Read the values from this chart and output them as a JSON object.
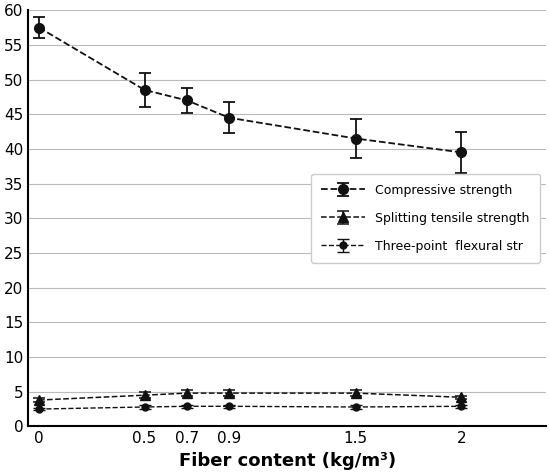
{
  "x": [
    0,
    0.5,
    0.7,
    0.9,
    1.5,
    2.0
  ],
  "compressive_y": [
    57.5,
    48.5,
    47.0,
    44.5,
    41.5,
    39.5
  ],
  "compressive_err": [
    1.5,
    2.5,
    1.8,
    2.2,
    2.8,
    3.0
  ],
  "splitting_y": [
    3.8,
    4.5,
    4.8,
    4.8,
    4.8,
    4.2
  ],
  "splitting_err": [
    0.25,
    0.4,
    0.45,
    0.4,
    0.4,
    0.25
  ],
  "flexural_y": [
    2.5,
    2.8,
    2.9,
    2.9,
    2.8,
    2.9
  ],
  "flexural_err": [
    0.2,
    0.25,
    0.25,
    0.25,
    0.25,
    0.2
  ],
  "xlabel": "Fiber content (kg/m³)",
  "legend_compressive": "Compressive strength",
  "legend_splitting": "Splitting tensile strength",
  "legend_flexural": "Three-point  flexural str",
  "ylim": [
    0,
    60
  ],
  "yticks": [
    0,
    5,
    10,
    15,
    20,
    25,
    30,
    35,
    40,
    45,
    50,
    55,
    60
  ],
  "xticks": [
    0,
    0.5,
    0.7,
    0.9,
    1.5,
    2.0
  ],
  "xticklabels": [
    "0",
    "0.5",
    "0.7",
    "0.9",
    "1.5",
    "2"
  ],
  "background_color": "#ffffff",
  "line_color": "#111111",
  "grid_color": "#bbbbbb"
}
